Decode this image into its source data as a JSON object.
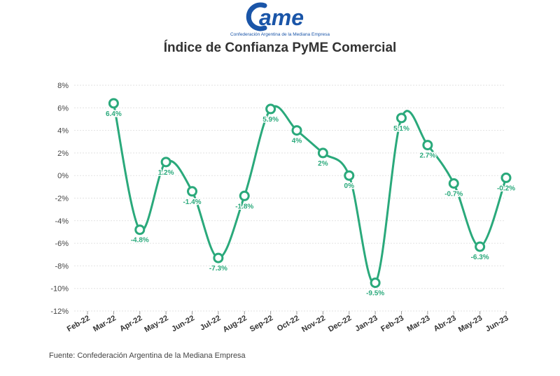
{
  "logo": {
    "text": "ame",
    "subtitle": "Confederación Argentina de la Mediana Empresa"
  },
  "footer": {
    "source": "Fuente: Confederación Argentina de la Mediana Empresa"
  },
  "colors": {
    "line": "#2aa97b",
    "logo": "#1a55a8",
    "grid": "#e2e2e2"
  },
  "chart_data": {
    "type": "line",
    "title": "Índice de Confianza PyME Comercial",
    "xlabel": "",
    "ylabel": "",
    "ylim": [
      -12,
      8
    ],
    "yticks": [
      8,
      6,
      4,
      2,
      0,
      -2,
      -4,
      -6,
      -8,
      -10,
      -12
    ],
    "ytick_labels": [
      "8%",
      "6%",
      "4%",
      "2%",
      "0%",
      "-2%",
      "-4%",
      "-6%",
      "-8%",
      "-10%",
      "-12%"
    ],
    "grid": true,
    "categories": [
      "Feb-22",
      "Mar-22",
      "Apr-22",
      "May-22",
      "Jun-22",
      "Jul-22",
      "Aug-22",
      "Sep-22",
      "Oct-22",
      "Nov-22",
      "Dec-22",
      "Jan-23",
      "Feb-23",
      "Mar-23",
      "Abr-23",
      "May-23",
      "Jun-23"
    ],
    "series": [
      {
        "values": [
          null,
          6.4,
          -4.8,
          1.2,
          -1.4,
          -7.3,
          -1.8,
          5.9,
          4,
          2,
          0,
          -9.5,
          5.1,
          2.7,
          -0.7,
          -6.3,
          -0.2
        ],
        "labels": [
          null,
          "6.4%",
          "-4.8%",
          "1.2%",
          "-1.4%",
          "-7.3%",
          "-1.8%",
          "5.9%",
          "4%",
          "2%",
          "0%",
          "-9.5%",
          "5.1%",
          "2.7%",
          "-0.7%",
          "-6.3%",
          "-0.2%"
        ]
      }
    ]
  }
}
